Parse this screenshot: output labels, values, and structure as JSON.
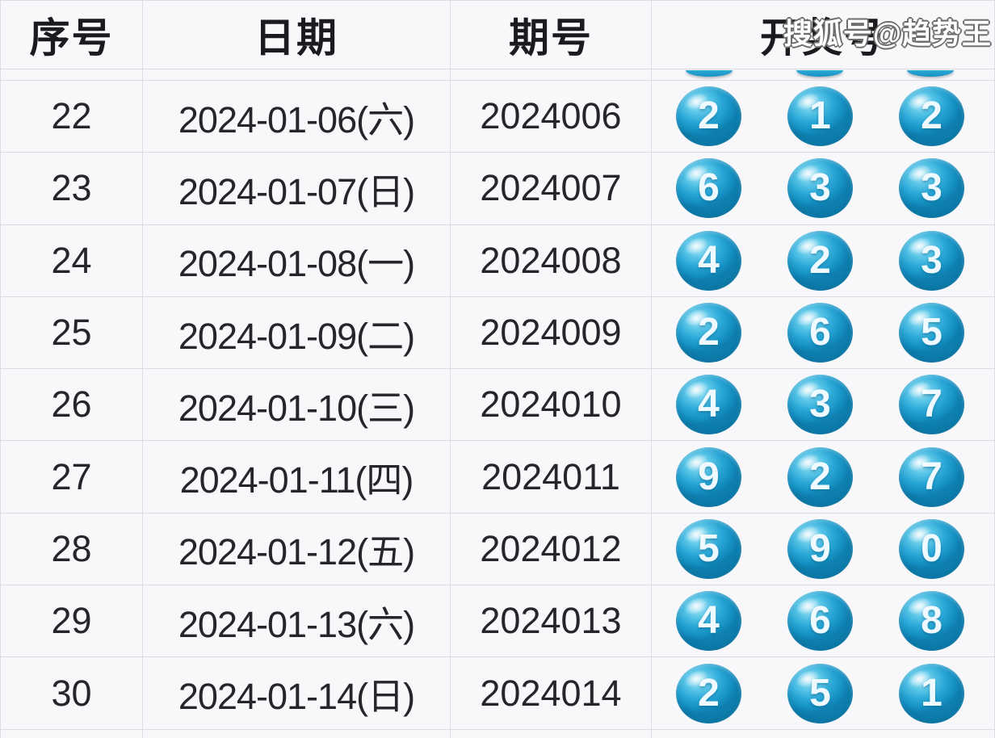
{
  "watermark": "搜狐号@趋势王",
  "header": {
    "serial": "序号",
    "date": "日期",
    "period": "期号",
    "numbers": "开奖号"
  },
  "rows": [
    {
      "serial": "22",
      "date": "2024-01-06(六)",
      "period": "2024006",
      "balls": [
        "2",
        "1",
        "2"
      ]
    },
    {
      "serial": "23",
      "date": "2024-01-07(日)",
      "period": "2024007",
      "balls": [
        "6",
        "3",
        "3"
      ]
    },
    {
      "serial": "24",
      "date": "2024-01-08(一)",
      "period": "2024008",
      "balls": [
        "4",
        "2",
        "3"
      ]
    },
    {
      "serial": "25",
      "date": "2024-01-09(二)",
      "period": "2024009",
      "balls": [
        "2",
        "6",
        "5"
      ]
    },
    {
      "serial": "26",
      "date": "2024-01-10(三)",
      "period": "2024010",
      "balls": [
        "4",
        "3",
        "7"
      ]
    },
    {
      "serial": "27",
      "date": "2024-01-11(四)",
      "period": "2024011",
      "balls": [
        "9",
        "2",
        "7"
      ]
    },
    {
      "serial": "28",
      "date": "2024-01-12(五)",
      "period": "2024012",
      "balls": [
        "5",
        "9",
        "0"
      ]
    },
    {
      "serial": "29",
      "date": "2024-01-13(六)",
      "period": "2024013",
      "balls": [
        "4",
        "6",
        "8"
      ]
    },
    {
      "serial": "30",
      "date": "2024-01-14(日)",
      "period": "2024014",
      "balls": [
        "2",
        "5",
        "1"
      ]
    }
  ],
  "colors": {
    "ball_main": "#2aa7d6",
    "ball_rim": "#0e7fae",
    "ball_highlight": "#aee6f6",
    "ball_number": "#eefaff",
    "grid_line": "#dcdee6",
    "cell_background": "#f8f8fa",
    "text": "#26262a"
  }
}
